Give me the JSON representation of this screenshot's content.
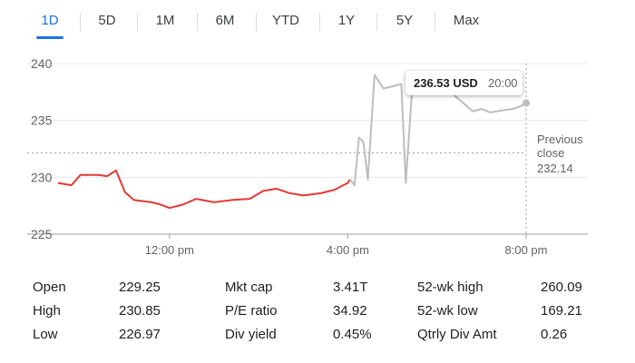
{
  "tabs": [
    {
      "label": "1D",
      "active": true
    },
    {
      "label": "5D",
      "active": false
    },
    {
      "label": "1M",
      "active": false
    },
    {
      "label": "6M",
      "active": false
    },
    {
      "label": "YTD",
      "active": false
    },
    {
      "label": "1Y",
      "active": false
    },
    {
      "label": "5Y",
      "active": false
    },
    {
      "label": "Max",
      "active": false
    }
  ],
  "tooltip": {
    "price": "236.53 USD",
    "time": "20:00"
  },
  "chart_data": {
    "type": "line",
    "title": "",
    "xlabel": "",
    "ylabel": "",
    "ylim": [
      225,
      240
    ],
    "y_ticks": [
      "240",
      "235",
      "230",
      "225"
    ],
    "x_ticks": [
      {
        "label": "12:00 pm",
        "hour": 12
      },
      {
        "label": "4:00 pm",
        "hour": 16
      },
      {
        "label": "8:00 pm",
        "hour": 20
      }
    ],
    "previous_close": {
      "value": 232.14,
      "label_lines": [
        "Previous",
        "close"
      ],
      "value_text": "232.14"
    },
    "series": [
      {
        "session": "regular",
        "color": "#e53935",
        "points": [
          [
            9.5,
            229.5
          ],
          [
            9.8,
            229.3
          ],
          [
            10.0,
            230.2
          ],
          [
            10.4,
            230.2
          ],
          [
            10.6,
            230.1
          ],
          [
            10.8,
            230.6
          ],
          [
            11.0,
            228.7
          ],
          [
            11.2,
            228.0
          ],
          [
            11.6,
            227.8
          ],
          [
            11.8,
            227.6
          ],
          [
            12.0,
            227.3
          ],
          [
            12.3,
            227.6
          ],
          [
            12.6,
            228.1
          ],
          [
            13.0,
            227.8
          ],
          [
            13.4,
            228.0
          ],
          [
            13.8,
            228.1
          ],
          [
            14.1,
            228.8
          ],
          [
            14.4,
            229.0
          ],
          [
            14.7,
            228.6
          ],
          [
            15.0,
            228.4
          ],
          [
            15.4,
            228.6
          ],
          [
            15.7,
            228.9
          ],
          [
            16.0,
            229.5
          ],
          [
            16.05,
            229.8
          ]
        ]
      },
      {
        "session": "after-hours",
        "color": "#bdbdbd",
        "points": [
          [
            16.05,
            229.8
          ],
          [
            16.15,
            229.3
          ],
          [
            16.25,
            233.5
          ],
          [
            16.35,
            233.1
          ],
          [
            16.45,
            229.8
          ],
          [
            16.6,
            239.0
          ],
          [
            16.8,
            237.8
          ],
          [
            17.0,
            238.0
          ],
          [
            17.2,
            238.2
          ],
          [
            17.3,
            229.5
          ],
          [
            17.45,
            238.2
          ],
          [
            17.7,
            237.6
          ],
          [
            18.0,
            237.8
          ],
          [
            18.3,
            237.5
          ],
          [
            18.6,
            236.5
          ],
          [
            18.8,
            235.8
          ],
          [
            19.0,
            236.0
          ],
          [
            19.2,
            235.7
          ],
          [
            19.5,
            235.9
          ],
          [
            19.7,
            236.0
          ],
          [
            19.85,
            236.2
          ],
          [
            20.0,
            236.53
          ]
        ]
      }
    ]
  },
  "stats": [
    [
      {
        "label": "Open",
        "value": "229.25"
      },
      {
        "label": "High",
        "value": "230.85"
      },
      {
        "label": "Low",
        "value": "226.97"
      }
    ],
    [
      {
        "label": "Mkt cap",
        "value": "3.41T"
      },
      {
        "label": "P/E ratio",
        "value": "34.92"
      },
      {
        "label": "Div yield",
        "value": "0.45%"
      }
    ],
    [
      {
        "label": "52-wk high",
        "value": "260.09"
      },
      {
        "label": "52-wk low",
        "value": "169.21"
      },
      {
        "label": "Qtrly Div Amt",
        "value": "0.26"
      }
    ]
  ]
}
